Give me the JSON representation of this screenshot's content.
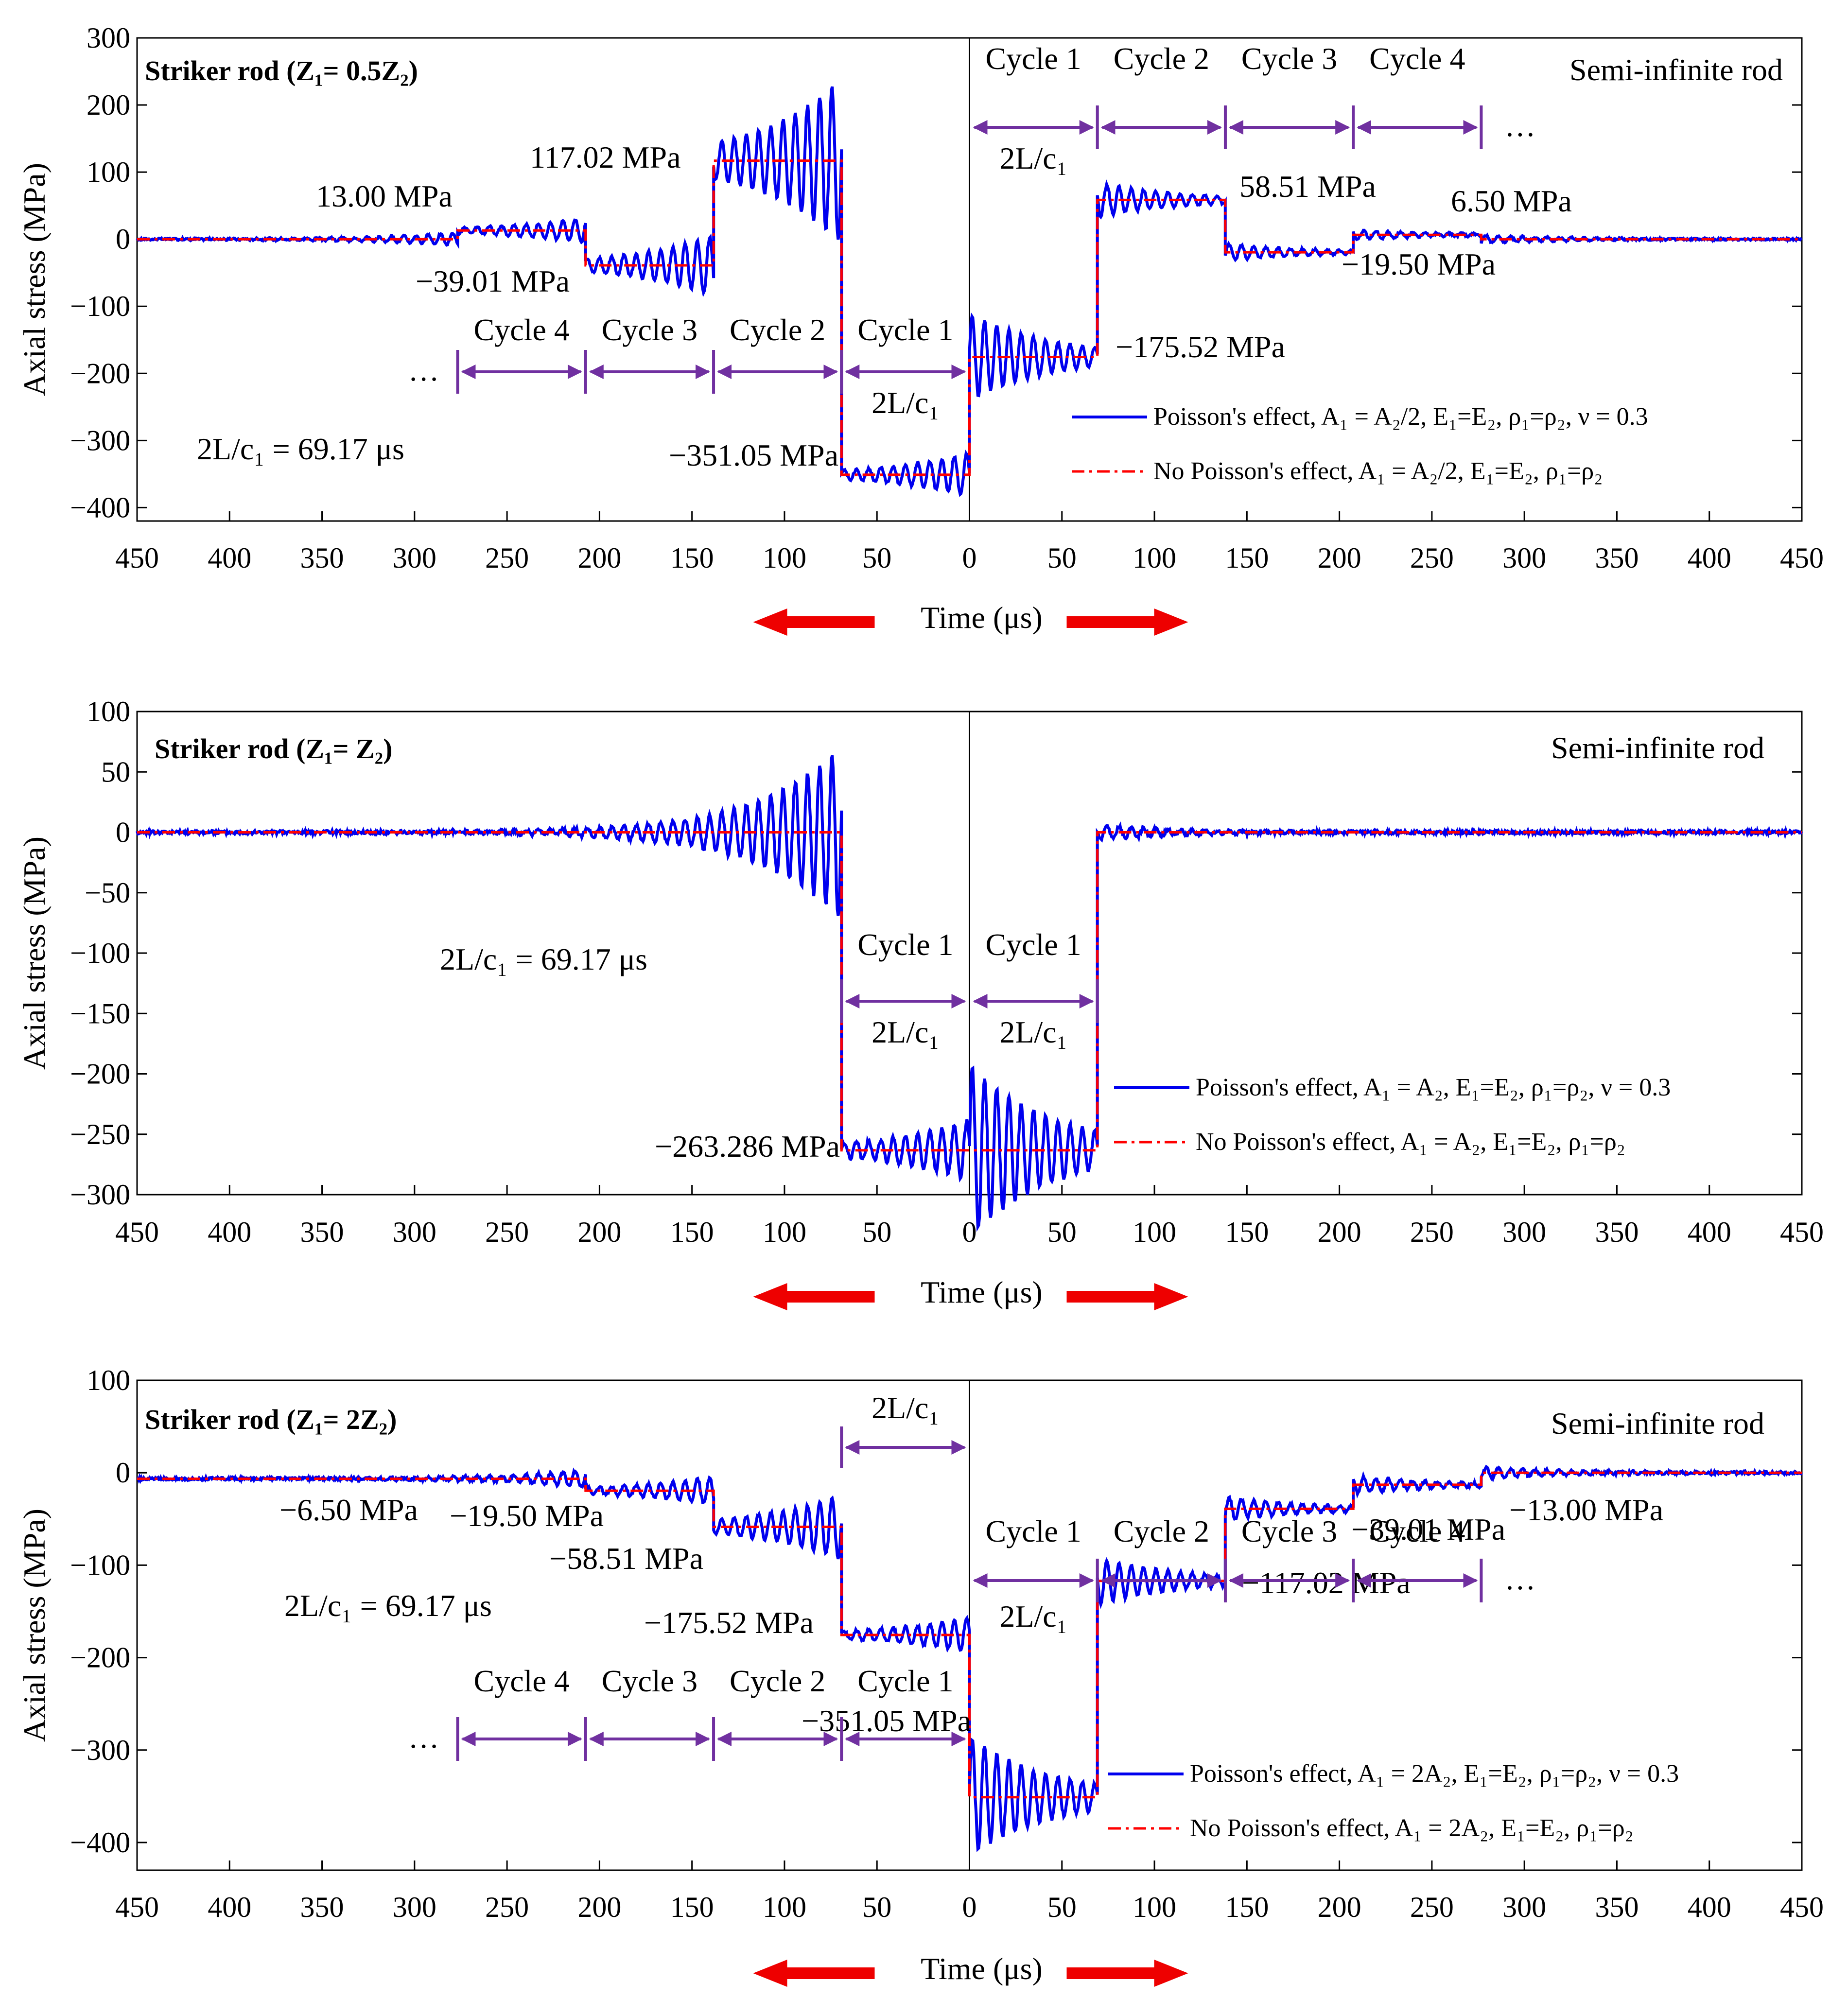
{
  "colors": {
    "poisson": "#0000ee",
    "no_poisson": "#ff0000",
    "cycle": "#7030a0",
    "arrow": "#ee0000",
    "axis": "#000000"
  },
  "chart_data": [
    {
      "type": "line",
      "panel": "top",
      "title": "Striker rod (Z₁= 0.5Z₂)",
      "right_title": "Semi-infinite rod",
      "xlabel": "Time (μs)",
      "ylabel": "Axial stress (MPa)",
      "ylim": [
        -420,
        300
      ],
      "yticks": [
        300,
        200,
        100,
        0,
        -100,
        -200,
        -300,
        -400
      ],
      "xlim_left": [
        450,
        0
      ],
      "xlim_right": [
        0,
        450
      ],
      "xtick_labels": [
        "450",
        "400",
        "350",
        "300",
        "250",
        "200",
        "150",
        "100",
        "50",
        "0",
        "50",
        "100",
        "150",
        "200",
        "250",
        "300",
        "350",
        "400",
        "450"
      ],
      "period_label": "2L/c₁ = 69.17 μs",
      "series": [
        {
          "name": "Poisson's effect, A₁ = A₂/2, E₁=E₂, ρ₁=ρ₂, ν = 0.3",
          "style": "solid",
          "left_levels": [
            [
              450,
              276.7,
              0
            ],
            [
              276.7,
              207.5,
              13.0
            ],
            [
              207.5,
              138.3,
              -39.01
            ],
            [
              138.3,
              69.17,
              117.02
            ],
            [
              69.17,
              0,
              -351.05
            ]
          ],
          "right_levels": [
            [
              0,
              69.17,
              -175.52
            ],
            [
              69.17,
              138.3,
              58.51
            ],
            [
              138.3,
              207.5,
              -19.5
            ],
            [
              207.5,
              276.7,
              6.5
            ],
            [
              276.7,
              450,
              0
            ]
          ]
        },
        {
          "name": "No Poisson's effect, A₁ = A₂/2, E₁=E₂, ρ₁=ρ₂",
          "style": "dashdot",
          "left_levels": [
            [
              450,
              276.7,
              0
            ],
            [
              276.7,
              207.5,
              13.0
            ],
            [
              207.5,
              138.3,
              -39.01
            ],
            [
              138.3,
              69.17,
              117.02
            ],
            [
              69.17,
              0,
              -351.05
            ]
          ],
          "right_levels": [
            [
              0,
              69.17,
              -175.52
            ],
            [
              69.17,
              138.3,
              58.51
            ],
            [
              138.3,
              207.5,
              -19.5
            ],
            [
              207.5,
              276.7,
              6.5
            ],
            [
              276.7,
              450,
              0
            ]
          ]
        }
      ],
      "annotations": [
        "13.00 MPa",
        "−39.01 MPa",
        "117.02 MPa",
        "−351.05 MPa",
        "−175.52 MPa",
        "58.51 MPa",
        "−19.50 MPa",
        "6.50 MPa"
      ],
      "cycles_left": [
        "Cycle 4",
        "Cycle 3",
        "Cycle 2",
        "Cycle 1"
      ],
      "cycles_right": [
        "Cycle 1",
        "Cycle 2",
        "Cycle 3",
        "Cycle 4"
      ],
      "period_short": "2L/c₁",
      "ellipsis": "…"
    },
    {
      "type": "line",
      "panel": "middle",
      "title": "Striker rod (Z₁= Z₂)",
      "right_title": "Semi-infinite rod",
      "xlabel": "Time (μs)",
      "ylabel": "Axial stress (MPa)",
      "ylim": [
        -300,
        100
      ],
      "yticks": [
        100,
        50,
        0,
        -50,
        -100,
        -150,
        -200,
        -250,
        -300
      ],
      "xlim_left": [
        450,
        0
      ],
      "xlim_right": [
        0,
        450
      ],
      "xtick_labels": [
        "450",
        "400",
        "350",
        "300",
        "250",
        "200",
        "150",
        "100",
        "50",
        "0",
        "50",
        "100",
        "150",
        "200",
        "250",
        "300",
        "350",
        "400",
        "450"
      ],
      "period_label": "2L/c₁ = 69.17 μs",
      "series": [
        {
          "name": "Poisson's effect, A₁ = A₂, E₁=E₂, ρ₁=ρ₂, ν = 0.3",
          "style": "solid",
          "left_levels": [
            [
              450,
              69.17,
              0
            ],
            [
              69.17,
              0,
              -263.286
            ]
          ],
          "right_levels": [
            [
              0,
              69.17,
              -263.286
            ],
            [
              69.17,
              450,
              0
            ]
          ]
        },
        {
          "name": "No Poisson's effect, A₁ = A₂, E₁=E₂, ρ₁=ρ₂",
          "style": "dashdot",
          "left_levels": [
            [
              450,
              69.17,
              0
            ],
            [
              69.17,
              0,
              -263.286
            ]
          ],
          "right_levels": [
            [
              0,
              69.17,
              -263.286
            ],
            [
              69.17,
              450,
              0
            ]
          ]
        }
      ],
      "annotations": [
        "−263.286 MPa"
      ],
      "cycles_left": [
        "Cycle 1"
      ],
      "cycles_right": [
        "Cycle 1"
      ],
      "period_short": "2L/c₁"
    },
    {
      "type": "line",
      "panel": "bottom",
      "title": "Striker rod (Z₁= 2Z₂)",
      "right_title": "Semi-infinite rod",
      "xlabel": "Time (μs)",
      "ylabel": "Axial stress (MPa)",
      "ylim": [
        -430,
        100
      ],
      "yticks": [
        100,
        0,
        -100,
        -200,
        -300,
        -400
      ],
      "xlim_left": [
        450,
        0
      ],
      "xlim_right": [
        0,
        450
      ],
      "xtick_labels": [
        "450",
        "400",
        "350",
        "300",
        "250",
        "200",
        "150",
        "100",
        "50",
        "0",
        "50",
        "100",
        "150",
        "200",
        "250",
        "300",
        "350",
        "400",
        "450"
      ],
      "period_label": "2L/c₁ = 69.17 μs",
      "series": [
        {
          "name": "Poisson's effect, A₁ = 2A₂, E₁=E₂, ρ₁=ρ₂, ν = 0.3",
          "style": "solid",
          "left_levels": [
            [
              450,
              207.5,
              -6.5
            ],
            [
              207.5,
              138.3,
              -19.5
            ],
            [
              138.3,
              69.17,
              -58.51
            ],
            [
              69.17,
              0,
              -175.52
            ]
          ],
          "right_levels": [
            [
              0,
              69.17,
              -351.05
            ],
            [
              69.17,
              138.3,
              -117.02
            ],
            [
              138.3,
              207.5,
              -39.01
            ],
            [
              207.5,
              276.7,
              -13.0
            ],
            [
              276.7,
              450,
              0
            ]
          ]
        },
        {
          "name": "No Poisson's effect, A₁ = 2A₂, E₁=E₂, ρ₁=ρ₂",
          "style": "dashdot",
          "left_levels": [
            [
              450,
              207.5,
              -6.5
            ],
            [
              207.5,
              138.3,
              -19.5
            ],
            [
              138.3,
              69.17,
              -58.51
            ],
            [
              69.17,
              0,
              -175.52
            ]
          ],
          "right_levels": [
            [
              0,
              69.17,
              -351.05
            ],
            [
              69.17,
              138.3,
              -117.02
            ],
            [
              138.3,
              207.5,
              -39.01
            ],
            [
              207.5,
              276.7,
              -13.0
            ],
            [
              276.7,
              450,
              0
            ]
          ]
        }
      ],
      "annotations": [
        "−6.50 MPa",
        "−19.50 MPa",
        "−58.51 MPa",
        "−175.52 MPa",
        "−351.05 MPa",
        "−117.02 MPa",
        "−39.01 MPa",
        "−13.00 MPa"
      ],
      "cycles_left": [
        "Cycle 4",
        "Cycle 3",
        "Cycle 2",
        "Cycle 1"
      ],
      "cycles_right": [
        "Cycle 1",
        "Cycle 2",
        "Cycle 3",
        "Cycle 4"
      ],
      "period_short": "2L/c₁",
      "ellipsis": "…"
    }
  ]
}
